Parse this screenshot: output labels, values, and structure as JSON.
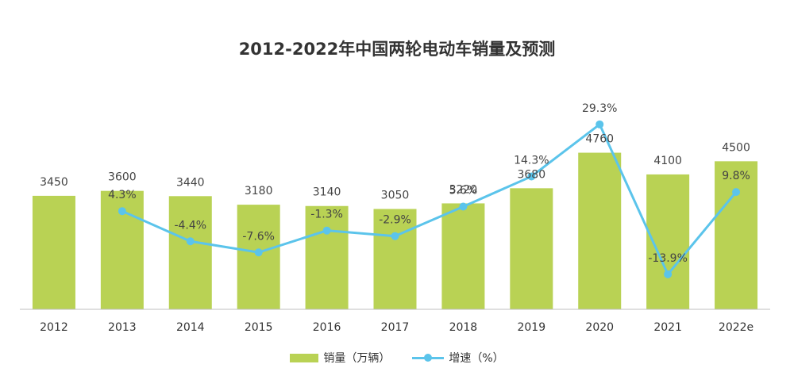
{
  "chart_data": {
    "type": "bar+line",
    "title": "2012-2022年中国两轮电动车销量及预测",
    "categories": [
      "2012",
      "2013",
      "2014",
      "2015",
      "2016",
      "2017",
      "2018",
      "2019",
      "2020",
      "2021",
      "2022e"
    ],
    "series": [
      {
        "name": "销量（万辆）",
        "type": "bar",
        "values": [
          3450,
          3600,
          3440,
          3180,
          3140,
          3050,
          3220,
          3680,
          4760,
          4100,
          4500
        ],
        "labels": [
          "3450",
          "3600",
          "3440",
          "3180",
          "3140",
          "3050",
          "3220",
          "3680",
          "4760",
          "4100",
          "4500"
        ]
      },
      {
        "name": "增速（%）",
        "type": "line",
        "values": [
          null,
          4.3,
          -4.4,
          -7.6,
          -1.3,
          -2.9,
          5.6,
          14.3,
          29.3,
          -13.9,
          9.8
        ],
        "labels": [
          "",
          "4.3%",
          "-4.4%",
          "-7.6%",
          "-1.3%",
          "-2.9%",
          "5.6%",
          "14.3%",
          "29.3%",
          "-13.9%",
          "9.8%"
        ]
      }
    ],
    "bar_axis": {
      "min": 0,
      "max": 6750
    },
    "line_axis": {
      "min": -24,
      "max": 40
    },
    "colors": {
      "bar": "#b9d254",
      "line": "#5bc4eb",
      "axis": "#bfbfbf"
    },
    "legend_position": "bottom"
  }
}
